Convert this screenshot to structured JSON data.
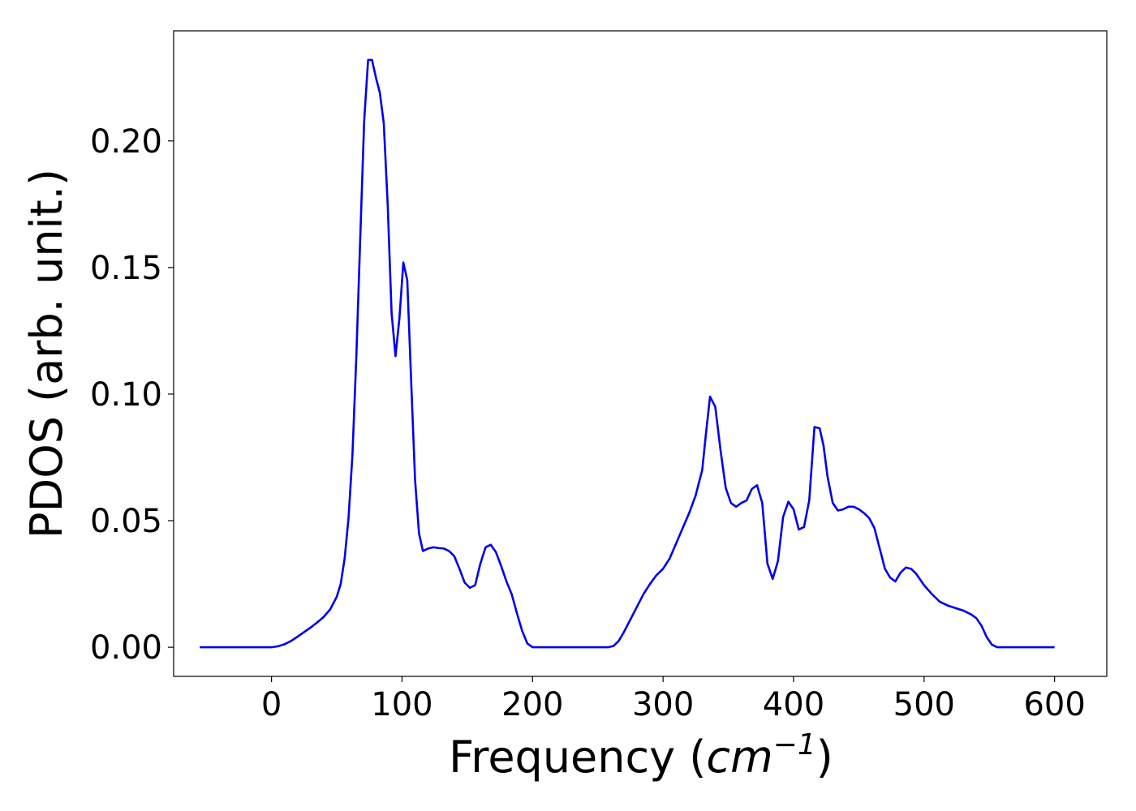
{
  "chart_data": {
    "type": "line",
    "xlabel": "Frequency",
    "xlabel_unit_open": " (",
    "xlabel_unit_var": "cm",
    "xlabel_unit_exp": "−1",
    "xlabel_unit_close": ")",
    "ylabel": "PDOS (arb. unit.)",
    "xlim": [
      -75,
      640
    ],
    "ylim": [
      -0.0115,
      0.2435
    ],
    "xticks": [
      {
        "value": 0,
        "label": "0"
      },
      {
        "value": 100,
        "label": "100"
      },
      {
        "value": 200,
        "label": "200"
      },
      {
        "value": 300,
        "label": "300"
      },
      {
        "value": 400,
        "label": "400"
      },
      {
        "value": 500,
        "label": "500"
      },
      {
        "value": 600,
        "label": "600"
      }
    ],
    "yticks": [
      {
        "value": 0.0,
        "label": "0.00"
      },
      {
        "value": 0.05,
        "label": "0.05"
      },
      {
        "value": 0.1,
        "label": "0.10"
      },
      {
        "value": 0.15,
        "label": "0.15"
      },
      {
        "value": 0.2,
        "label": "0.20"
      }
    ],
    "grid": false,
    "series": [
      {
        "color": "#0000ee",
        "x": [
          -55,
          -40,
          -20,
          0,
          5,
          10,
          15,
          20,
          25,
          30,
          35,
          40,
          45,
          50,
          53,
          56,
          59,
          62,
          65,
          68,
          71,
          74,
          77,
          80,
          83,
          86,
          89,
          92,
          95,
          98,
          101,
          104,
          107,
          110,
          113,
          116,
          120,
          124,
          128,
          132,
          136,
          140,
          144,
          148,
          152,
          156,
          160,
          164,
          168,
          172,
          176,
          180,
          184,
          188,
          192,
          196,
          200,
          205,
          210,
          220,
          230,
          240,
          250,
          258,
          262,
          266,
          270,
          275,
          280,
          285,
          290,
          295,
          300,
          305,
          310,
          315,
          320,
          325,
          330,
          333,
          336,
          340,
          344,
          348,
          352,
          356,
          360,
          364,
          368,
          372,
          376,
          380,
          384,
          388,
          392,
          396,
          400,
          404,
          408,
          412,
          416,
          420,
          423,
          426,
          430,
          434,
          438,
          442,
          446,
          450,
          454,
          458,
          462,
          466,
          470,
          474,
          478,
          482,
          486,
          490,
          494,
          500,
          506,
          512,
          518,
          524,
          530,
          536,
          540,
          544,
          548,
          552,
          556,
          560,
          570,
          580,
          590,
          600
        ],
        "values": [
          0.0,
          0.0,
          0.0,
          0.0,
          0.0004,
          0.0012,
          0.0025,
          0.0042,
          0.006,
          0.0078,
          0.0098,
          0.012,
          0.015,
          0.02,
          0.025,
          0.035,
          0.051,
          0.076,
          0.115,
          0.162,
          0.208,
          0.232,
          0.232,
          0.225,
          0.219,
          0.207,
          0.175,
          0.132,
          0.115,
          0.13,
          0.152,
          0.145,
          0.105,
          0.066,
          0.045,
          0.038,
          0.039,
          0.0395,
          0.0392,
          0.039,
          0.038,
          0.036,
          0.031,
          0.0255,
          0.0235,
          0.0245,
          0.033,
          0.0395,
          0.0405,
          0.0375,
          0.032,
          0.026,
          0.021,
          0.0135,
          0.0065,
          0.0015,
          0.0,
          0.0,
          0.0,
          0.0,
          0.0,
          0.0,
          0.0,
          0.0,
          0.0005,
          0.0025,
          0.006,
          0.011,
          0.016,
          0.021,
          0.025,
          0.0285,
          0.031,
          0.035,
          0.041,
          0.047,
          0.053,
          0.06,
          0.07,
          0.085,
          0.099,
          0.095,
          0.078,
          0.063,
          0.057,
          0.0555,
          0.057,
          0.058,
          0.0625,
          0.064,
          0.057,
          0.033,
          0.027,
          0.034,
          0.0515,
          0.0575,
          0.0545,
          0.0465,
          0.0475,
          0.058,
          0.087,
          0.0865,
          0.0795,
          0.0675,
          0.057,
          0.054,
          0.0545,
          0.0555,
          0.0555,
          0.0545,
          0.053,
          0.051,
          0.047,
          0.039,
          0.031,
          0.0275,
          0.026,
          0.0295,
          0.0315,
          0.031,
          0.029,
          0.0245,
          0.021,
          0.018,
          0.0165,
          0.0155,
          0.0145,
          0.013,
          0.0115,
          0.0085,
          0.004,
          0.001,
          0.0,
          0.0,
          0.0,
          0.0,
          0.0,
          0.0
        ]
      }
    ]
  }
}
